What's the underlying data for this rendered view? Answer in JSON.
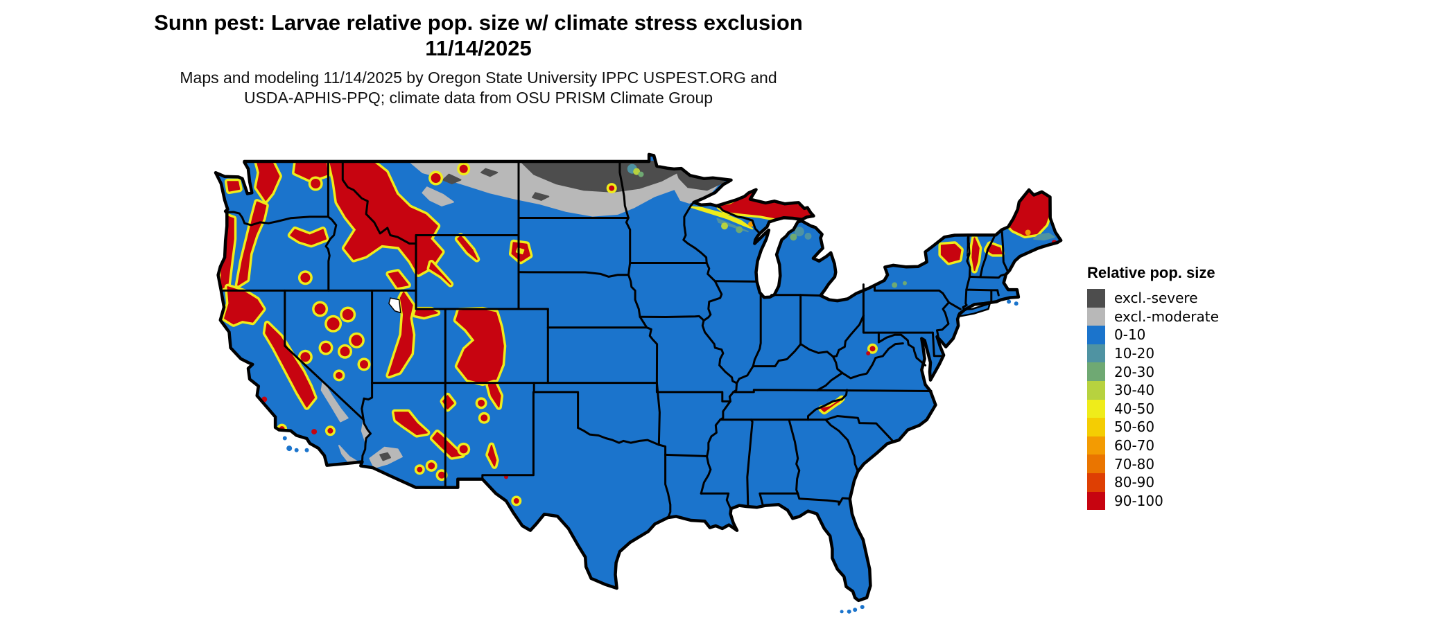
{
  "figure": {
    "title_line1": "Sunn pest: Larvae relative pop. size w/ climate stress exclusion",
    "title_line2": "11/14/2025",
    "subtitle_line1": "Maps and modeling 11/14/2025 by Oregon State University IPPC USPEST.ORG and",
    "subtitle_line2": "USDA-APHIS-PPQ; climate data from OSU PRISM Climate Group"
  },
  "legend": {
    "title": "Relative pop. size",
    "items": [
      {
        "key": "excl_severe",
        "label": "excl.-severe",
        "color": "#4d4d4d"
      },
      {
        "key": "excl_moderate",
        "label": "excl.-moderate",
        "color": "#b8b8b8"
      },
      {
        "key": "b0",
        "label": "0-10",
        "color": "#1b74cc"
      },
      {
        "key": "b10",
        "label": "10-20",
        "color": "#4f93a2"
      },
      {
        "key": "b20",
        "label": "20-30",
        "color": "#6fa973"
      },
      {
        "key": "b30",
        "label": "30-40",
        "color": "#b7d23f"
      },
      {
        "key": "b40",
        "label": "40-50",
        "color": "#efec1a"
      },
      {
        "key": "b50",
        "label": "50-60",
        "color": "#f4cd03"
      },
      {
        "key": "b60",
        "label": "60-70",
        "color": "#f39b02"
      },
      {
        "key": "b70",
        "label": "70-80",
        "color": "#ea7500"
      },
      {
        "key": "b80",
        "label": "80-90",
        "color": "#de3f03"
      },
      {
        "key": "b90",
        "label": "90-100",
        "color": "#c70410"
      }
    ]
  },
  "map_data": {
    "type": "choropleth-raster",
    "region": "Conterminous United States with state boundaries",
    "units": "relative population size (0-100) plus climate-stress exclusion classes",
    "visible_patterns": [
      "Most of the central, southern and eastern U.S. is in the 0-10 (blue) class",
      "90-100 (dark red) zones with 40-60 (yellow) fringes over the Cascades, Olympic Peninsula, Oregon Coast Range, Klamath, Sierra Nevada, Great Basin ranges, Idaho/western Montana Rockies, Bighorn, Wind River, Wasatch, Colorado Rockies, Sangre de Cristo, Mogollon Rim, Black Hills, Upper Michigan, Adirondacks, Green and White Mountains, and northern Maine",
      "excl.-severe (dark gray) band across northern North Dakota and northern Minnesota with smaller pockets in Montana",
      "excl.-moderate (light gray) band across northern Montana through central North Dakota/Minnesota and in southwest deserts (Death Valley, Salton trough, SW Arizona)",
      "Great Lakes, ocean and Canada/Mexico shown as white background"
    ]
  }
}
